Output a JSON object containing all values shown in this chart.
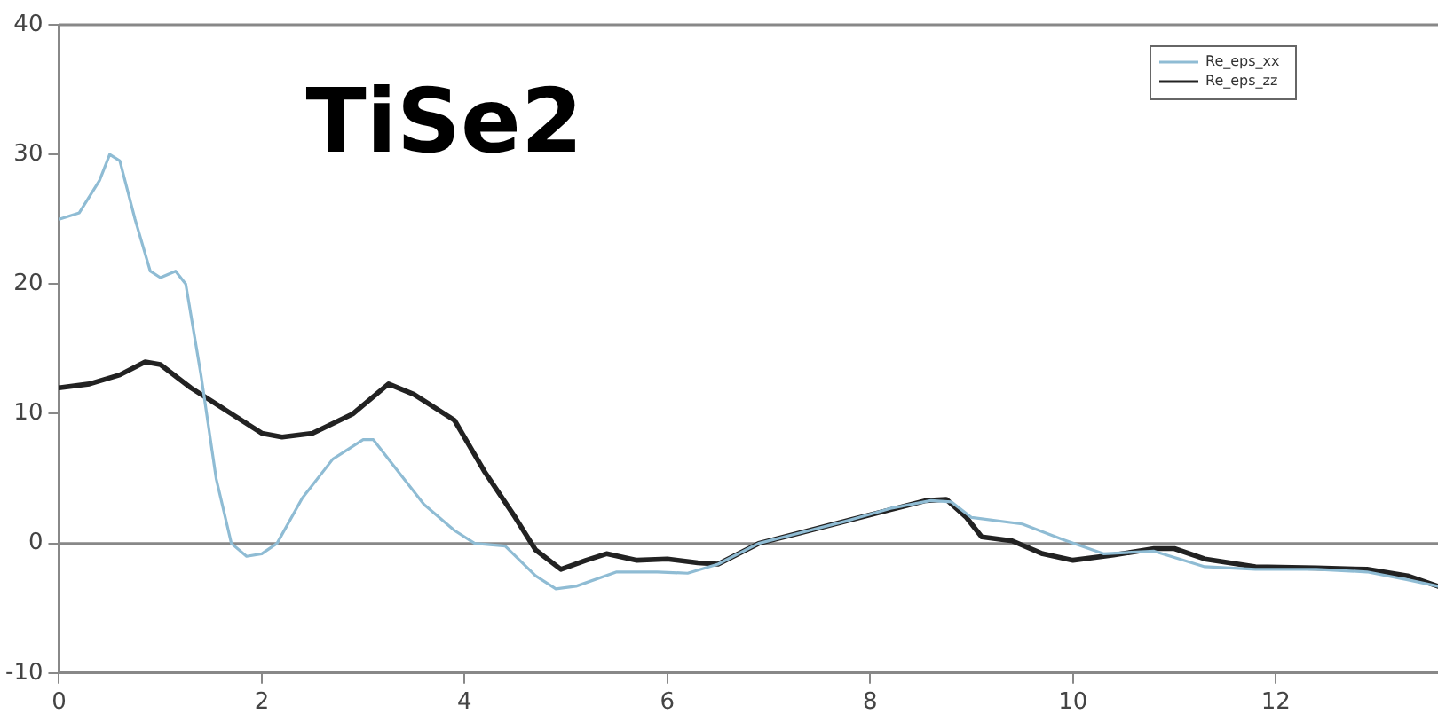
{
  "chart_data": {
    "type": "line",
    "title": "TiSe2",
    "series": [
      {
        "name": "Re_eps_xx",
        "color": "#8fbcd4",
        "x": [
          0,
          0.2,
          0.4,
          0.5,
          0.6,
          0.75,
          0.9,
          1.0,
          1.15,
          1.25,
          1.4,
          1.55,
          1.7,
          1.85,
          2.0,
          2.15,
          2.4,
          2.7,
          3.0,
          3.1,
          3.3,
          3.6,
          3.9,
          4.1,
          4.4,
          4.7,
          4.9,
          5.1,
          5.5,
          5.9,
          6.2,
          6.5,
          6.9,
          7.3,
          7.8,
          8.2,
          8.6,
          8.8,
          9.0,
          9.5,
          9.9,
          10.3,
          10.8,
          11.3,
          11.8,
          12.4,
          12.9,
          13.3,
          13.6
        ],
        "values": [
          25,
          25.5,
          28,
          30,
          29.5,
          25,
          21,
          20.5,
          21,
          20,
          13,
          5,
          0,
          -1,
          -0.8,
          0,
          3.5,
          6.5,
          8,
          8,
          6,
          3,
          1,
          0,
          -0.2,
          -2.5,
          -3.5,
          -3.3,
          -2.2,
          -2.2,
          -2.3,
          -1.6,
          0,
          0.8,
          1.8,
          2.7,
          3.3,
          3.2,
          2,
          1.5,
          0.3,
          -0.8,
          -0.6,
          -1.8,
          -2,
          -2,
          -2.2,
          -2.8,
          -3.3
        ]
      },
      {
        "name": "Re_eps_zz",
        "color": "#222222",
        "x": [
          0,
          0.3,
          0.6,
          0.85,
          1.0,
          1.3,
          1.6,
          2.0,
          2.2,
          2.5,
          2.9,
          3.25,
          3.5,
          3.9,
          4.2,
          4.5,
          4.7,
          4.95,
          5.2,
          5.4,
          5.7,
          6.0,
          6.3,
          6.5,
          6.9,
          7.3,
          7.8,
          8.2,
          8.55,
          8.75,
          8.95,
          9.1,
          9.4,
          9.7,
          10.0,
          10.4,
          10.8,
          11.0,
          11.3,
          11.8,
          12.4,
          12.9,
          13.3,
          13.6
        ],
        "values": [
          12,
          12.3,
          13,
          14,
          13.8,
          12,
          10.5,
          8.5,
          8.2,
          8.5,
          10,
          12.3,
          11.5,
          9.5,
          5.5,
          2,
          -0.5,
          -2,
          -1.3,
          -0.8,
          -1.3,
          -1.2,
          -1.5,
          -1.6,
          0,
          0.8,
          1.8,
          2.6,
          3.3,
          3.4,
          2,
          0.5,
          0.2,
          -0.8,
          -1.3,
          -0.9,
          -0.4,
          -0.4,
          -1.2,
          -1.8,
          -1.9,
          -2,
          -2.5,
          -3.3
        ]
      }
    ],
    "xlim": [
      0,
      13.6
    ],
    "xticks": [
      0,
      2,
      4,
      6,
      8,
      10,
      12
    ],
    "ylim": [
      -10,
      40
    ],
    "yticks": [
      -10,
      0,
      10,
      20,
      30,
      40
    ],
    "ref_lines": [
      {
        "axis": "y",
        "value": 0,
        "color": "#888888"
      }
    ],
    "grid": false,
    "legend": "top right",
    "marker": "none",
    "line_style": "solid"
  }
}
